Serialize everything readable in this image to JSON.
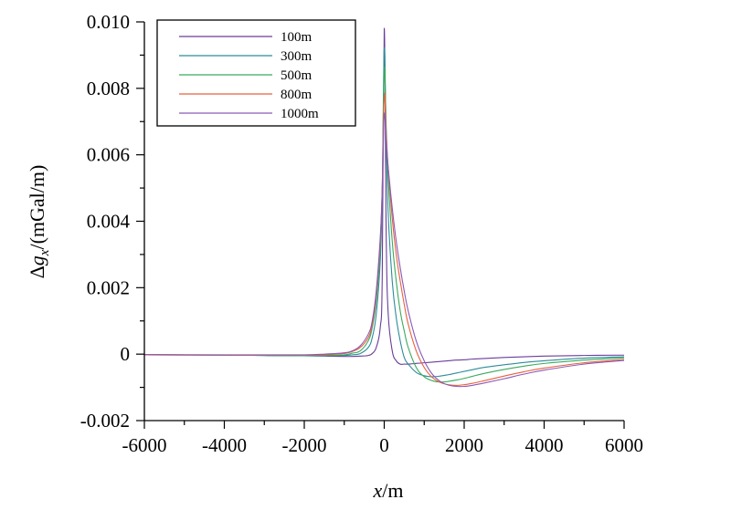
{
  "chart_data": {
    "type": "line",
    "xlabel_italic": "x",
    "xlabel_rest": "/m",
    "ylabel_prefix": "Δ",
    "ylabel_var": "g",
    "ylabel_sub": "x",
    "ylabel_rest": "/(mGal/m)",
    "xlim": [
      -6000,
      6000
    ],
    "ylim": [
      -0.002,
      0.01
    ],
    "xticks": [
      -6000,
      -4000,
      -2000,
      0,
      2000,
      4000,
      6000
    ],
    "xtick_labels": [
      "-6000",
      "-4000",
      "-2000",
      "0",
      "2000",
      "4000",
      "6000"
    ],
    "yticks": [
      -0.002,
      0,
      0.002,
      0.004,
      0.006,
      0.008,
      0.01
    ],
    "ytick_labels": [
      "-0.002",
      "0",
      "0.002",
      "0.004",
      "0.006",
      "0.008",
      "0.010"
    ],
    "legend_position": "top-left",
    "x": [
      -6000,
      -4000,
      -3000,
      -2000,
      -1500,
      -1000,
      -800,
      -600,
      -400,
      -300,
      -200,
      -100,
      -50,
      0,
      50,
      100,
      200,
      300,
      400,
      500,
      600,
      800,
      1000,
      1200,
      1400,
      1600,
      1800,
      2000,
      2200,
      2500,
      3000,
      3500,
      4000,
      5000,
      6000
    ],
    "series": [
      {
        "name": "100m",
        "color": "#6a3d9a",
        "values": [
          -2e-05,
          -3e-05,
          -4e-05,
          -5e-05,
          -6e-05,
          -7e-05,
          -7e-05,
          -6e-05,
          -4e-05,
          2e-05,
          0.0002,
          0.0008,
          0.0023,
          0.0098,
          0.0035,
          0.0012,
          0.0001,
          -0.0002,
          -0.0003,
          -0.0003,
          -0.0003,
          -0.00028,
          -0.00026,
          -0.00024,
          -0.00022,
          -0.0002,
          -0.00018,
          -0.00017,
          -0.00015,
          -0.00013,
          -0.0001,
          -8e-05,
          -6e-05,
          -4e-05,
          -3e-05
        ]
      },
      {
        "name": "300m",
        "color": "#2c8c9a",
        "values": [
          -2e-05,
          -3e-05,
          -4e-05,
          -5e-05,
          -5e-05,
          -4e-05,
          -2e-05,
          2e-05,
          0.0002,
          0.0005,
          0.0012,
          0.0028,
          0.0048,
          0.0092,
          0.0064,
          0.0042,
          0.0022,
          0.0011,
          0.0004,
          -0.0001,
          -0.0003,
          -0.00055,
          -0.00065,
          -0.00068,
          -0.00066,
          -0.00062,
          -0.00057,
          -0.00052,
          -0.00047,
          -0.0004,
          -0.00032,
          -0.00025,
          -0.0002,
          -0.00012,
          -8e-05
        ]
      },
      {
        "name": "500m",
        "color": "#3aaa5c",
        "values": [
          -2e-05,
          -3e-05,
          -4e-05,
          -5e-05,
          -4e-05,
          -2e-05,
          3e-05,
          0.0001,
          0.0004,
          0.0008,
          0.0016,
          0.0032,
          0.005,
          0.0086,
          0.0068,
          0.0053,
          0.0034,
          0.0022,
          0.0013,
          0.0007,
          0.0002,
          -0.0004,
          -0.00068,
          -0.0008,
          -0.00084,
          -0.00082,
          -0.00078,
          -0.00073,
          -0.00067,
          -0.00058,
          -0.00046,
          -0.00036,
          -0.00028,
          -0.00018,
          -0.00011
        ]
      },
      {
        "name": "800m",
        "color": "#e8603c",
        "values": [
          -2e-05,
          -3e-05,
          -3e-05,
          -3e-05,
          -2e-05,
          2e-05,
          8e-05,
          0.0002,
          0.0005,
          0.0009,
          0.0018,
          0.0034,
          0.005,
          0.0078,
          0.0066,
          0.0056,
          0.0041,
          0.003,
          0.0022,
          0.0015,
          0.0009,
          0.0001,
          -0.0004,
          -0.0007,
          -0.00085,
          -0.00092,
          -0.00094,
          -0.00092,
          -0.00088,
          -0.0008,
          -0.00066,
          -0.00053,
          -0.00042,
          -0.00026,
          -0.00016
        ]
      },
      {
        "name": "1000m",
        "color": "#8a5ab8",
        "values": [
          -1e-05,
          -2e-05,
          -2e-05,
          -2e-05,
          0.0,
          4e-05,
          0.0001,
          0.00025,
          0.0006,
          0.001,
          0.0019,
          0.0035,
          0.0049,
          0.0072,
          0.0064,
          0.0056,
          0.0044,
          0.0034,
          0.0026,
          0.0019,
          0.0013,
          0.0004,
          -0.0002,
          -0.0006,
          -0.00082,
          -0.00093,
          -0.00097,
          -0.00097,
          -0.00094,
          -0.00087,
          -0.00074,
          -0.0006,
          -0.00048,
          -0.0003,
          -0.00019
        ]
      }
    ]
  }
}
